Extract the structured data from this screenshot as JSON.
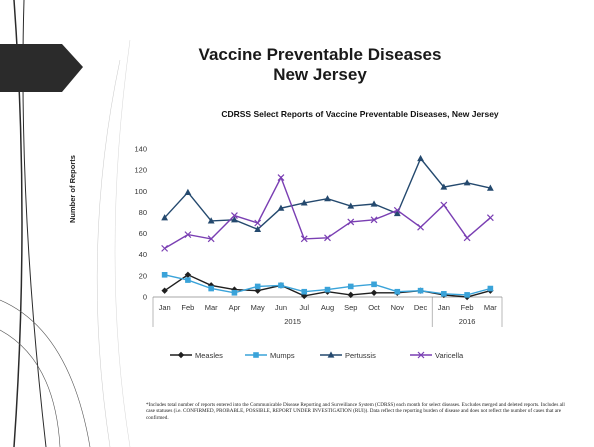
{
  "slide": {
    "title_line1": "Vaccine Preventable Diseases",
    "title_line2": "New Jersey",
    "footnote": "*Includes total number of reports entered into the Communicable Disease Reporting and Surveillance System (CDRSS) each month for select diseases. Excludes merged and deleted reports. Includes all case statuses (i.e. CONFIRMED, PROBABLE, POSSIBLE, REPORT UNDER INVESTIGATION (RUI)). Data reflect the reporting burden of disease and does not reflect the number of cases that are confirmed.",
    "accent_color": "#2b2b2b"
  },
  "chart_data": {
    "type": "line",
    "title": "CDRSS Select Reports of Vaccine Preventable Diseases, New Jersey",
    "ylabel": "Number of Reports",
    "xlabel": "",
    "ylim": [
      0,
      140
    ],
    "yticks": [
      0,
      20,
      40,
      60,
      80,
      100,
      120,
      140
    ],
    "categories": [
      "Jan",
      "Feb",
      "Mar",
      "Apr",
      "May",
      "Jun",
      "Jul",
      "Aug",
      "Sep",
      "Oct",
      "Nov",
      "Dec",
      "Jan",
      "Feb",
      "Mar"
    ],
    "year_groups": [
      {
        "label": "2015",
        "count": 12
      },
      {
        "label": "2016",
        "count": 3
      }
    ],
    "grid": false,
    "legend_position": "bottom",
    "series": [
      {
        "name": "Measles",
        "color": "#1f1f1f",
        "marker": "diamond",
        "values": [
          6,
          21,
          11,
          7,
          6,
          11,
          1,
          5,
          2,
          4,
          4,
          6,
          2,
          0,
          6
        ]
      },
      {
        "name": "Mumps",
        "color": "#3aa3d9",
        "marker": "square",
        "values": [
          21,
          16,
          8,
          4,
          10,
          11,
          5,
          7,
          10,
          12,
          5,
          6,
          3,
          2,
          8
        ]
      },
      {
        "name": "Pertussis",
        "color": "#24496e",
        "marker": "triangle",
        "values": [
          75,
          99,
          72,
          73,
          64,
          84,
          89,
          93,
          86,
          88,
          79,
          131,
          104,
          108,
          103
        ]
      },
      {
        "name": "Varicella",
        "color": "#7a3fb3",
        "marker": "x",
        "values": [
          46,
          59,
          55,
          77,
          70,
          113,
          55,
          56,
          71,
          73,
          82,
          66,
          87,
          56,
          75
        ]
      }
    ]
  }
}
